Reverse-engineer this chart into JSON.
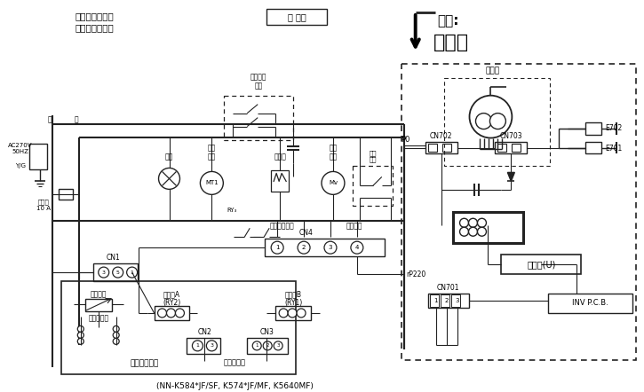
{
  "bg_color": "white",
  "line_color": "#222222",
  "gray_color": "#888888",
  "note_line1": "注：炉门关闭。",
  "note_line2": "微波炉不工作。",
  "new_hv_text": "新 高压",
  "warning1": "注意:",
  "warning2": "高压区",
  "magnetron_label": "磁控管",
  "inverter_label": "变频器(U)",
  "inv_pcb_label": "INV P.C.B.",
  "p0": "P0",
  "p220": "rP220",
  "cn701": "CN701",
  "cn702": "CN702",
  "cn703": "CN703",
  "cn1": "CN1",
  "cn2": "CN2",
  "cn3": "CN3",
  "cn4": "CN4",
  "e701": "E701",
  "e702": "E702",
  "oven_lamp": "炉灯",
  "turntable": "转盘\n电机",
  "fan_motor": "风山\n电机",
  "heater": "加热器",
  "short_sw": "短路\n开关",
  "primary_sw": "初级碰锁\n开关",
  "secondary_sw": "次级碰锁开关",
  "thermal_res": "热敏电阵",
  "varistor": "压敏电阵",
  "lv_transformer": "低压变压器",
  "relay_a": "继电器A\n(RY2)",
  "relay_b": "继电器B\n(RY1)",
  "data_circuit": "数据程序电路",
  "steam_sensor": "蕋汽感应器",
  "bottom_note": "(NN-K584*JF/SF, K574*JF/MF, K5640MF)",
  "ac_label": "AC270V\n50HZ",
  "yg_label": "Y/G",
  "blue_label": "蓝",
  "brown_label": "棕",
  "fuse_label": "保险丝\n10 A",
  "mt1_label": "MT1",
  "mv_label": "Mv",
  "ryt_label": "RY₃",
  "figsize": [
    7.25,
    4.42
  ],
  "dpi": 100
}
